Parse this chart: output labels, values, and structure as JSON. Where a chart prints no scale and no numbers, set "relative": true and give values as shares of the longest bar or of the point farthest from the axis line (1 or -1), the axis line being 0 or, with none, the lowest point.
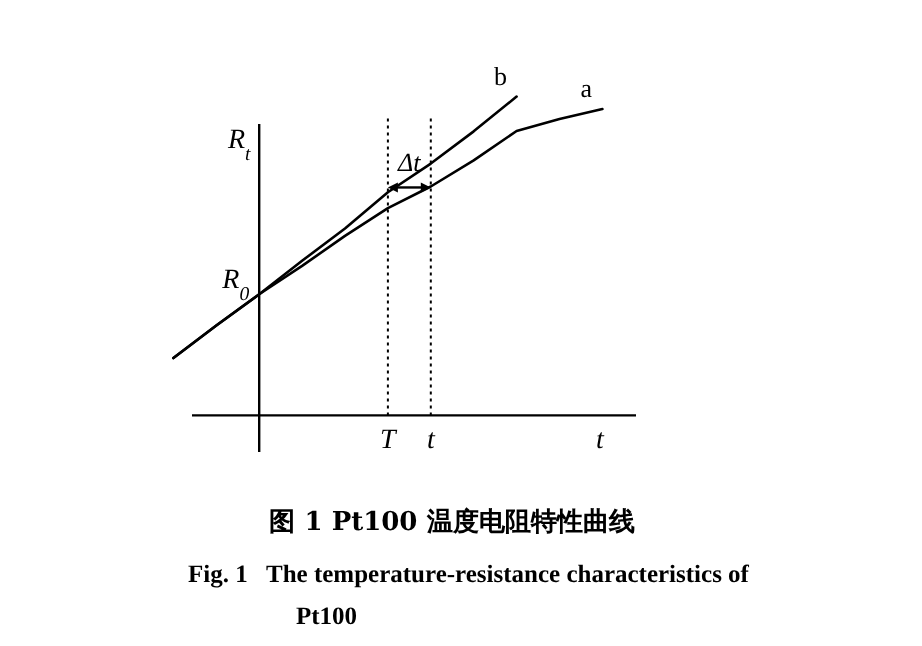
{
  "chart_data": {
    "type": "line",
    "title": "图 1   Pt100 温度电阻特性曲线",
    "subtitle": "Fig. 1   The temperature-resistance characteristics of Pt100",
    "xlabel": "t",
    "ylabel": "R$_{t}$",
    "relative": true,
    "categories": [
      null,
      null,
      null,
      null,
      null,
      "T",
      "t",
      null,
      null,
      null,
      null
    ],
    "annotations": [
      "R$_{0}$",
      {
        "text": "Δt",
        "y": 0.715
      }
    ],
    "ref_lines": [
      {
        "axis": "x",
        "value": "T",
        "color": "#000000",
        "line_style": "dotted"
      },
      {
        "axis": "x",
        "value": "t",
        "color": "#000000",
        "line_style": "dotted"
      }
    ],
    "series": [
      {
        "name": "b",
        "color": "#000000",
        "values": [
          0.18,
          0.282,
          0.38,
          0.485,
          0.586,
          0.7,
          0.79,
          0.891,
          1,
          null,
          null
        ]
      },
      {
        "name": "a",
        "color": "#000000",
        "values": [
          0.18,
          0.282,
          0.38,
          0.469,
          0.563,
          0.65,
          0.718,
          0.8,
          0.892,
          0.93,
          0.961
        ]
      }
    ]
  }
}
